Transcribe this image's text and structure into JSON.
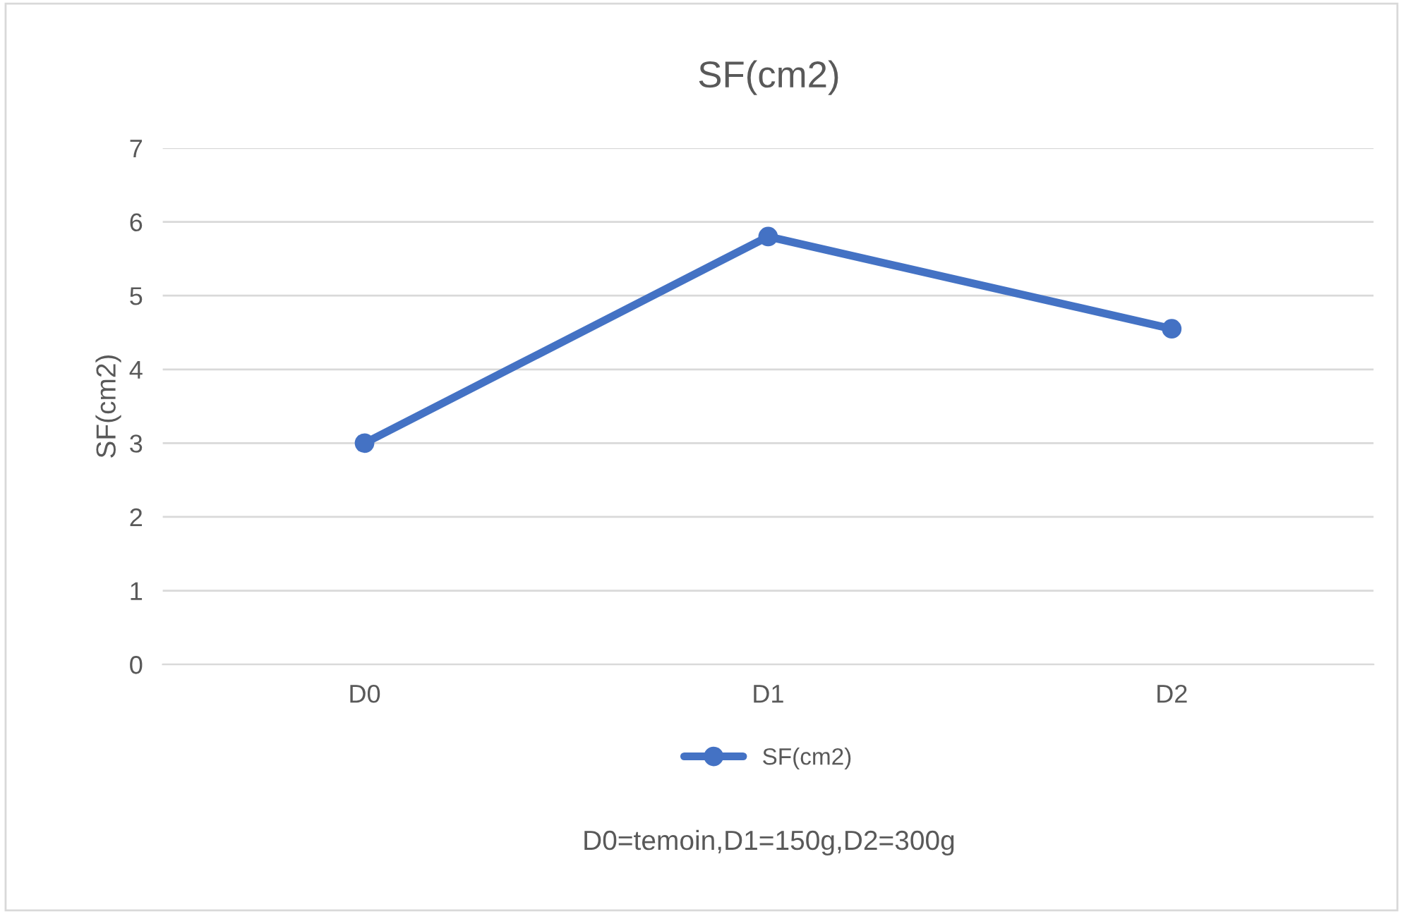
{
  "chart_data": {
    "type": "line",
    "title": "SF(cm2)",
    "ylabel": "SF(cm2)",
    "categories": [
      "D0",
      "D1",
      "D2"
    ],
    "series": [
      {
        "name": "SF(cm2)",
        "color": "#4472c4",
        "values": [
          3,
          5.8,
          4.55
        ]
      }
    ],
    "ylim": [
      0,
      7
    ],
    "yticks": [
      0,
      1,
      2,
      3,
      4,
      5,
      6,
      7
    ],
    "grid": "y",
    "legend": "bottom",
    "marker": "circle",
    "line_style": "solid",
    "annotations": [
      "D0=temoin,D1=150g,D2=300g"
    ]
  }
}
